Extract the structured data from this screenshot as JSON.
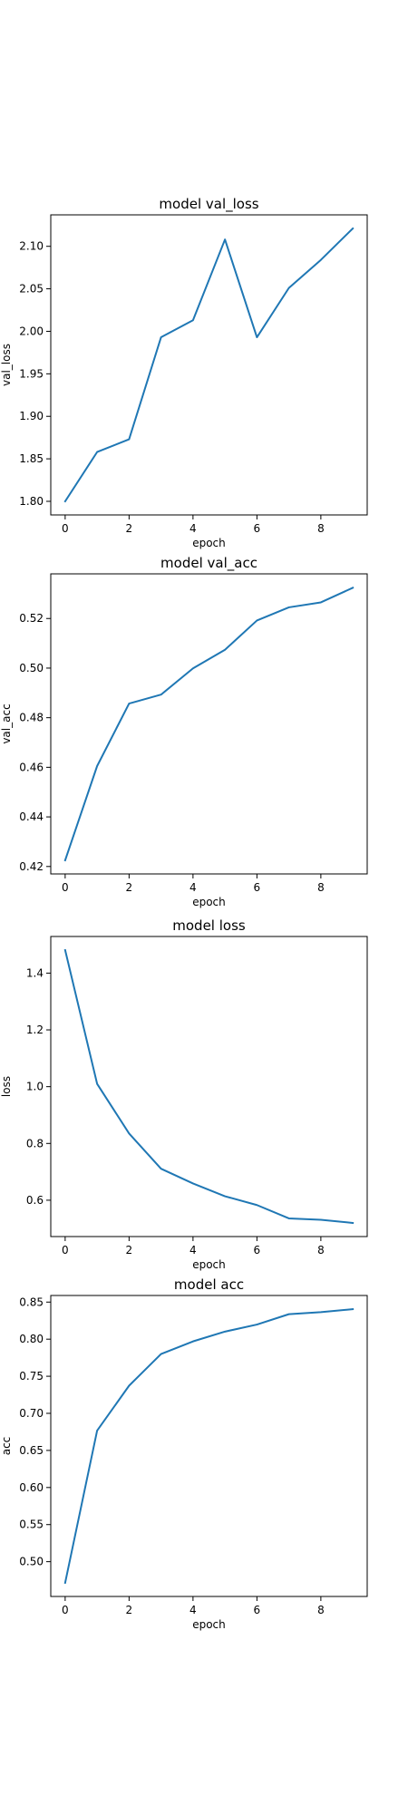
{
  "chart_data": [
    {
      "type": "line",
      "title": "model val_loss",
      "xlabel": "epoch",
      "ylabel": "val_loss",
      "x": [
        0,
        1,
        2,
        3,
        4,
        5,
        6,
        7,
        8,
        9
      ],
      "series": [
        {
          "values": [
            1.8,
            1.858,
            1.873,
            1.993,
            2.013,
            2.108,
            1.993,
            2.051,
            2.084,
            2.121
          ]
        }
      ],
      "xlim": [
        -0.45,
        9.45
      ],
      "ylim": [
        1.784,
        2.137
      ],
      "xticks": [
        0,
        2,
        4,
        6,
        8
      ],
      "yticks": [
        1.8,
        1.85,
        1.9,
        1.95,
        2.0,
        2.05,
        2.1
      ],
      "ytick_labels": [
        "1.80",
        "1.85",
        "1.90",
        "1.95",
        "2.00",
        "2.05",
        "2.10"
      ],
      "grid": false,
      "color": "#1f77b4"
    },
    {
      "type": "line",
      "title": "model val_acc",
      "xlabel": "epoch",
      "ylabel": "val_acc",
      "x": [
        0,
        1,
        2,
        3,
        4,
        5,
        6,
        7,
        8,
        9
      ],
      "series": [
        {
          "values": [
            0.4225,
            0.4605,
            0.4857,
            0.4893,
            0.4999,
            0.5074,
            0.5192,
            0.5245,
            0.5265,
            0.5324
          ]
        }
      ],
      "xlim": [
        -0.45,
        9.45
      ],
      "ylim": [
        0.417,
        0.538
      ],
      "xticks": [
        0,
        2,
        4,
        6,
        8
      ],
      "yticks": [
        0.42,
        0.44,
        0.46,
        0.48,
        0.5,
        0.52
      ],
      "ytick_labels": [
        "0.42",
        "0.44",
        "0.46",
        "0.48",
        "0.50",
        "0.52"
      ],
      "grid": false,
      "color": "#1f77b4"
    },
    {
      "type": "line",
      "title": "model loss",
      "xlabel": "epoch",
      "ylabel": "loss",
      "x": [
        0,
        1,
        2,
        3,
        4,
        5,
        6,
        7,
        8,
        9
      ],
      "series": [
        {
          "values": [
            1.481,
            1.01,
            0.835,
            0.711,
            0.659,
            0.614,
            0.583,
            0.536,
            0.531,
            0.52
          ]
        }
      ],
      "xlim": [
        -0.45,
        9.45
      ],
      "ylim": [
        0.472,
        1.529
      ],
      "xticks": [
        0,
        2,
        4,
        6,
        8
      ],
      "yticks": [
        0.6,
        0.8,
        1.0,
        1.2,
        1.4
      ],
      "ytick_labels": [
        "0.6",
        "0.8",
        "1.0",
        "1.2",
        "1.4"
      ],
      "grid": false,
      "color": "#1f77b4"
    },
    {
      "type": "line",
      "title": "model acc",
      "xlabel": "epoch",
      "ylabel": "acc",
      "x": [
        0,
        1,
        2,
        3,
        4,
        5,
        6,
        7,
        8,
        9
      ],
      "series": [
        {
          "values": [
            0.4715,
            0.6767,
            0.7373,
            0.78,
            0.797,
            0.8102,
            0.8197,
            0.8337,
            0.8364,
            0.8404
          ]
        }
      ],
      "xlim": [
        -0.45,
        9.45
      ],
      "ylim": [
        0.4531,
        0.8589
      ],
      "xticks": [
        0,
        2,
        4,
        6,
        8
      ],
      "yticks": [
        0.5,
        0.55,
        0.6,
        0.65,
        0.7,
        0.75,
        0.8,
        0.85
      ],
      "ytick_labels": [
        "0.50",
        "0.55",
        "0.60",
        "0.65",
        "0.70",
        "0.75",
        "0.80",
        "0.85"
      ],
      "grid": false,
      "color": "#1f77b4"
    }
  ]
}
